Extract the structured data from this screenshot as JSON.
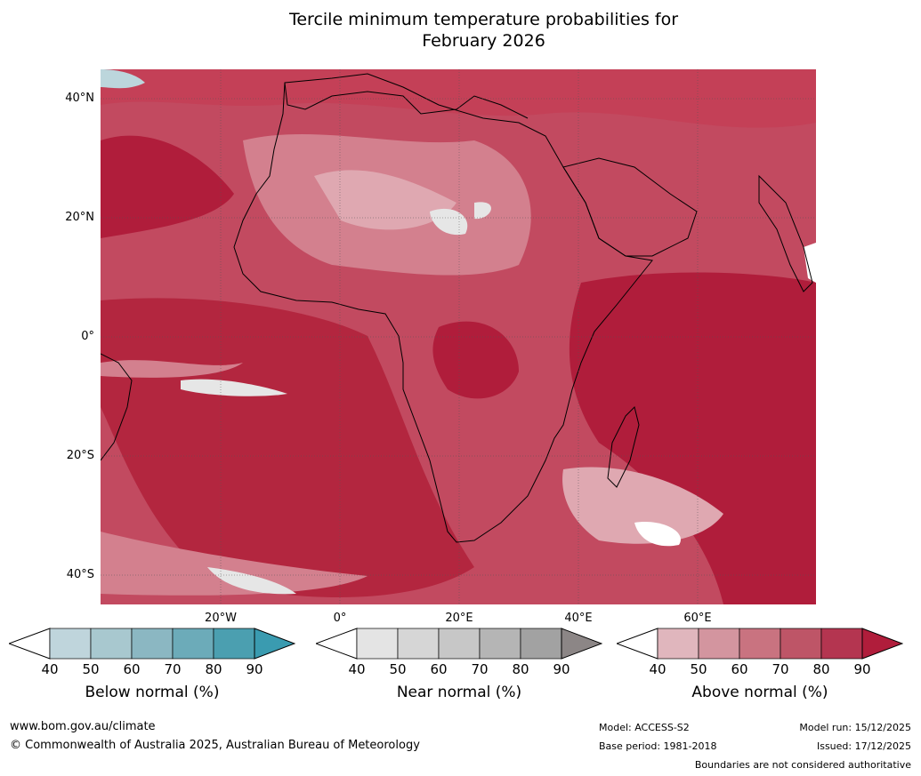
{
  "title_line1": "Tercile minimum temperature probabilities for",
  "title_line2": "February 2026",
  "lat_labels": [
    "40°N",
    "20°N",
    "0°",
    "20°S",
    "40°S"
  ],
  "lon_labels": [
    "20°W",
    "0°",
    "20°E",
    "40°E",
    "60°E"
  ],
  "colorbars": [
    {
      "title": "Below normal (%)",
      "ticks": [
        "40",
        "50",
        "60",
        "70",
        "80",
        "90"
      ],
      "colors": [
        "#bfd5dc",
        "#a8c8cf",
        "#8bb7c2",
        "#6cabb9",
        "#4b9fb0"
      ],
      "arrow_color": "#3a9bb0"
    },
    {
      "title": "Near normal (%)",
      "ticks": [
        "40",
        "50",
        "60",
        "70",
        "80",
        "90"
      ],
      "colors": [
        "#e4e4e4",
        "#d6d6d6",
        "#c7c7c7",
        "#b5b5b5",
        "#a2a2a2"
      ],
      "arrow_color": "#8c8686"
    },
    {
      "title": "Above normal (%)",
      "ticks": [
        "40",
        "50",
        "60",
        "70",
        "80",
        "90"
      ],
      "colors": [
        "#e0b6bd",
        "#d3959f",
        "#c97380",
        "#be5567",
        "#b43550"
      ],
      "arrow_color": "#b01d3b"
    }
  ],
  "footer": {
    "website": "www.bom.gov.au/climate",
    "copyright": "© Commonwealth of Australia 2025, Australian Bureau of Meteorology",
    "model": "Model: ACCESS-S2",
    "base_period": "Base period: 1981-2018",
    "model_run": "Model run: 15/12/2025",
    "issued": "Issued: 17/12/2025",
    "boundaries": "Boundaries are not considered authoritative"
  },
  "map_colors": {
    "ocean_dark": "#b01d3b",
    "above_80": "#be3a52",
    "above_70": "#c95c6e",
    "above_60": "#d3808e",
    "above_50": "#dfa8b1",
    "near": "#e6e6e6",
    "below": "#bcd6dc",
    "coast": "#000000",
    "borders": "#808080"
  }
}
